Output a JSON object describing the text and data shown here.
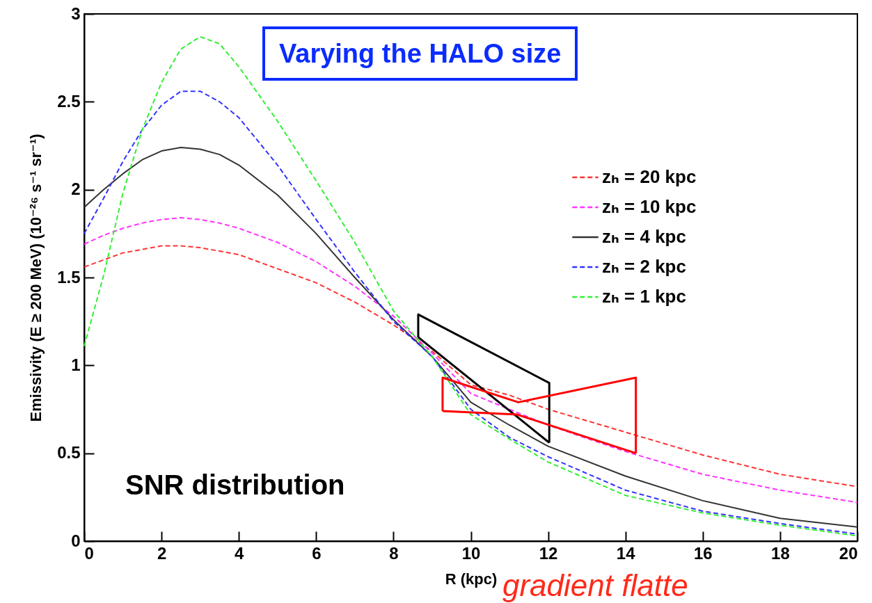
{
  "chart_data": {
    "type": "line",
    "xlabel": "R (kpc)",
    "ylabel": "Emissivity (E ≥ 200 MeV) (10⁻²⁶ s⁻¹ sr⁻¹)",
    "x": [
      0,
      0.5,
      1,
      1.5,
      2,
      2.5,
      3,
      3.5,
      4,
      5,
      6,
      7,
      8,
      9,
      10,
      11,
      12,
      14,
      16,
      18,
      20
    ],
    "xlim": [
      0,
      20
    ],
    "xticks": [
      0,
      2,
      4,
      6,
      8,
      10,
      12,
      14,
      16,
      18,
      20
    ],
    "ylim": [
      0,
      3
    ],
    "yticks": [
      0,
      0.5,
      1,
      1.5,
      2,
      2.5,
      3
    ],
    "grid": false,
    "legend": "top right",
    "marker": "none",
    "annotations": [
      "Varying the HALO size",
      "SNR distribution",
      "gradient flatte"
    ],
    "series": [
      {
        "name": "zₕ = 20 kpc",
        "color": "#ff3333",
        "line_style": "dashed",
        "values": [
          1.56,
          1.6,
          1.64,
          1.66,
          1.68,
          1.68,
          1.67,
          1.65,
          1.63,
          1.55,
          1.47,
          1.36,
          1.23,
          1.08,
          0.89,
          0.83,
          0.75,
          0.62,
          0.49,
          0.38,
          0.31
        ]
      },
      {
        "name": "zₕ = 10 kpc",
        "color": "#ff33ff",
        "line_style": "dashed",
        "values": [
          1.69,
          1.74,
          1.78,
          1.81,
          1.83,
          1.84,
          1.83,
          1.81,
          1.78,
          1.7,
          1.59,
          1.45,
          1.28,
          1.07,
          0.84,
          0.75,
          0.66,
          0.51,
          0.38,
          0.29,
          0.22
        ]
      },
      {
        "name": "zₕ = 4 kpc",
        "color": "#333333",
        "line_style": "solid",
        "values": [
          1.9,
          2.0,
          2.09,
          2.17,
          2.22,
          2.24,
          2.23,
          2.2,
          2.14,
          1.97,
          1.75,
          1.5,
          1.26,
          1.05,
          0.79,
          0.66,
          0.54,
          0.37,
          0.23,
          0.13,
          0.08
        ]
      },
      {
        "name": "zₕ = 2 kpc",
        "color": "#3333ff",
        "line_style": "dashed",
        "values": [
          1.75,
          1.95,
          2.16,
          2.34,
          2.48,
          2.56,
          2.56,
          2.5,
          2.41,
          2.14,
          1.83,
          1.53,
          1.25,
          1.05,
          0.75,
          0.59,
          0.48,
          0.29,
          0.17,
          0.1,
          0.04
        ]
      },
      {
        "name": "zₕ = 1 kpc",
        "color": "#33ee33",
        "line_style": "dashed",
        "values": [
          1.11,
          1.51,
          1.98,
          2.34,
          2.61,
          2.8,
          2.87,
          2.83,
          2.7,
          2.39,
          2.05,
          1.7,
          1.31,
          1.05,
          0.72,
          0.58,
          0.45,
          0.26,
          0.16,
          0.09,
          0.03
        ]
      },
      {
        "type": "line",
        "color": "#000000",
        "line_style": "solid",
        "x": [
          8.64,
          8.64,
          12.03,
          12.03
        ],
        "values": [
          1.16,
          1.29,
          0.9,
          0.56
        ]
      },
      {
        "type": "line",
        "color": "#000000",
        "line_style": "solid",
        "x": [
          8.64,
          12.03
        ],
        "values": [
          1.16,
          0.56
        ]
      },
      {
        "type": "line",
        "color": "#ff0000",
        "line_style": "solid",
        "x": [
          9.27,
          9.27,
          11.23,
          14.27,
          14.27
        ],
        "values": [
          0.74,
          0.93,
          0.79,
          0.93,
          0.5
        ]
      },
      {
        "type": "line",
        "color": "#ff0000",
        "line_style": "solid",
        "x": [
          9.27,
          11.2,
          14.27
        ],
        "values": [
          0.74,
          0.72,
          0.5
        ]
      }
    ]
  }
}
